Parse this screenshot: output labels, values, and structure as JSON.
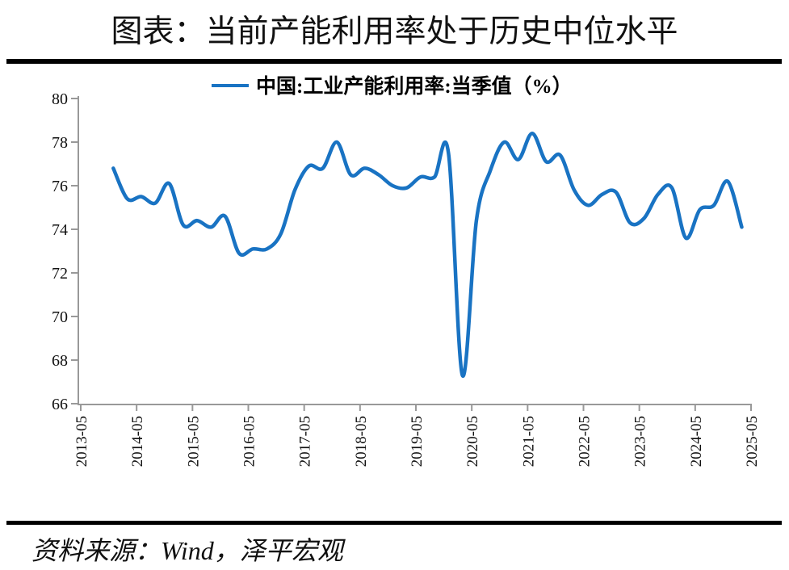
{
  "page": {
    "title": "图表：当前产能利用率处于历史中位水平",
    "source_note": "资料来源：Wind，泽平宏观"
  },
  "legend": {
    "series_label": "中国:工业产能利用率:当季值（%）"
  },
  "chart_data": {
    "type": "line",
    "title": "图表：当前产能利用率处于历史中位水平",
    "unit": "%",
    "grid": false,
    "legend_position": "top-center",
    "line_color": "#1973C3",
    "axis_color": "#999999",
    "ylim": [
      66,
      80
    ],
    "yticks": [
      80,
      78,
      76,
      74,
      72,
      70,
      68,
      66
    ],
    "xticks": [
      "2013-05",
      "2014-05",
      "2015-05",
      "2016-05",
      "2017-05",
      "2018-05",
      "2019-05",
      "2020-05",
      "2021-05",
      "2022-05",
      "2023-05",
      "2024-05",
      "2025-05"
    ],
    "series": [
      {
        "name": "中国:工业产能利用率:当季值（%）",
        "x": [
          "2013-12",
          "2014-03",
          "2014-06",
          "2014-09",
          "2014-12",
          "2015-03",
          "2015-06",
          "2015-09",
          "2015-12",
          "2016-03",
          "2016-06",
          "2016-09",
          "2016-12",
          "2017-03",
          "2017-06",
          "2017-09",
          "2017-12",
          "2018-03",
          "2018-06",
          "2018-09",
          "2018-12",
          "2019-03",
          "2019-06",
          "2019-09",
          "2019-12",
          "2020-03",
          "2020-06",
          "2020-09",
          "2020-12",
          "2021-03",
          "2021-06",
          "2021-09",
          "2021-12",
          "2022-03",
          "2022-06",
          "2022-09",
          "2022-12",
          "2023-03",
          "2023-06",
          "2023-09",
          "2023-12",
          "2024-03",
          "2024-06",
          "2024-09",
          "2024-12",
          "2025-03"
        ],
        "values": [
          76.8,
          75.4,
          75.5,
          75.2,
          76.1,
          74.2,
          74.4,
          74.1,
          74.6,
          72.9,
          73.1,
          73.1,
          73.8,
          75.8,
          76.9,
          76.8,
          78.0,
          76.5,
          76.8,
          76.5,
          76.0,
          75.9,
          76.4,
          76.4,
          77.5,
          67.3,
          74.4,
          76.7,
          78.0,
          77.2,
          78.4,
          77.1,
          77.4,
          75.8,
          75.1,
          75.6,
          75.7,
          74.3,
          74.5,
          75.6,
          75.9,
          73.6,
          74.9,
          75.1,
          76.2,
          74.1
        ]
      }
    ]
  }
}
